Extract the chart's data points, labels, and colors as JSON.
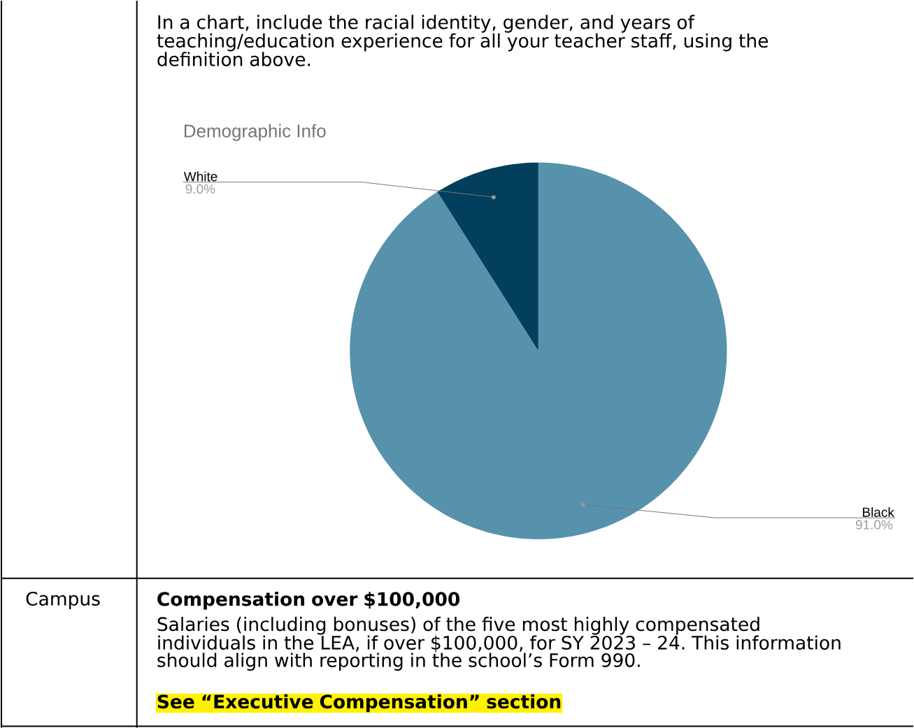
{
  "chart_data": {
    "type": "pie",
    "title": "Demographic Info",
    "categories": [
      "Black",
      "White"
    ],
    "values": [
      91.0,
      9.0
    ],
    "value_labels": [
      "91.0%",
      "9.0%"
    ],
    "colors": [
      "#5792ad",
      "#023f5c"
    ],
    "annotations": [
      "In a chart, include the racial identity, gender, and years of teaching/education experience for all your teacher staff, using the definition above.",
      "Campus",
      "Compensation over $100,000",
      "Salaries (including bonuses) of the five most highly compensated individuals in the LEA, if over $100,000, for SY 2023 – 24. This information should align with reporting in the school’s Form 990.",
      "See “Executive Compensation” section"
    ]
  }
}
